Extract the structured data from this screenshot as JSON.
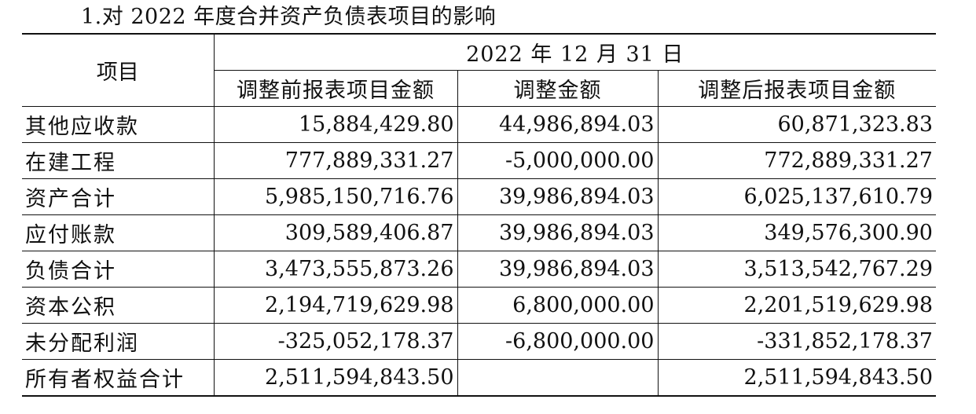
{
  "caption": "1.对 2022 年度合并资产负债表项目的影响",
  "table": {
    "header_item": "项目",
    "header_date": "2022 年 12 月 31 日",
    "columns": [
      "调整前报表项目金额",
      "调整金额",
      "调整后报表项目金额"
    ],
    "rows": [
      {
        "item": "其他应收款",
        "before": "15,884,429.80",
        "adjustment": "44,986,894.03",
        "after": "60,871,323.83"
      },
      {
        "item": "在建工程",
        "before": "777,889,331.27",
        "adjustment": "-5,000,000.00",
        "after": "772,889,331.27"
      },
      {
        "item": "资产合计",
        "before": "5,985,150,716.76",
        "adjustment": "39,986,894.03",
        "after": "6,025,137,610.79"
      },
      {
        "item": "应付账款",
        "before": "309,589,406.87",
        "adjustment": "39,986,894.03",
        "after": "349,576,300.90"
      },
      {
        "item": "负债合计",
        "before": "3,473,555,873.26",
        "adjustment": "39,986,894.03",
        "after": "3,513,542,767.29"
      },
      {
        "item": "资本公积",
        "before": "2,194,719,629.98",
        "adjustment": "6,800,000.00",
        "after": "2,201,519,629.98"
      },
      {
        "item": "未分配利润",
        "before": "-325,052,178.37",
        "adjustment": "-6,800,000.00",
        "after": "-331,852,178.37"
      },
      {
        "item": "所有者权益合计",
        "before": "2,511,594,843.50",
        "adjustment": "",
        "after": "2,511,594,843.50"
      }
    ]
  }
}
